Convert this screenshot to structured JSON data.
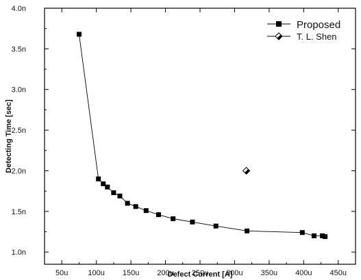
{
  "chart_data": {
    "type": "scatter",
    "xlabel": "Defect Current [A]",
    "ylabel": "Detecting Time [sec]",
    "xlim": [
      25,
      475
    ],
    "ylim": [
      0.85,
      4.0
    ],
    "x_tick_values": [
      50,
      100,
      150,
      200,
      250,
      300,
      350,
      400,
      450
    ],
    "x_tick_labels": [
      "50u",
      "100u",
      "150u",
      "200u",
      "250u",
      "300u",
      "350u",
      "400u",
      "450u"
    ],
    "y_tick_values": [
      1.0,
      1.5,
      2.0,
      2.5,
      3.0,
      3.5,
      4.0
    ],
    "y_tick_labels": [
      "1.0n",
      "1.5n",
      "2.0n",
      "2.5n",
      "3.0n",
      "3.5n",
      "4.0n"
    ],
    "grid": false,
    "legend_position": "top-right",
    "series": [
      {
        "name": "Proposed",
        "marker": "filled-square",
        "line": true,
        "color": "#000000",
        "x": [
          75,
          103,
          110,
          116,
          125,
          134,
          145,
          157,
          172,
          190,
          211,
          239,
          273,
          318,
          398,
          415,
          427,
          431
        ],
        "y": [
          3.68,
          1.9,
          1.84,
          1.8,
          1.73,
          1.69,
          1.6,
          1.56,
          1.51,
          1.46,
          1.41,
          1.37,
          1.32,
          1.26,
          1.24,
          1.2,
          1.2,
          1.19
        ]
      },
      {
        "name": "T. L. Shen",
        "marker": "diamond",
        "line": false,
        "color": "#000000",
        "x": [
          317
        ],
        "y": [
          2.0
        ]
      }
    ]
  }
}
